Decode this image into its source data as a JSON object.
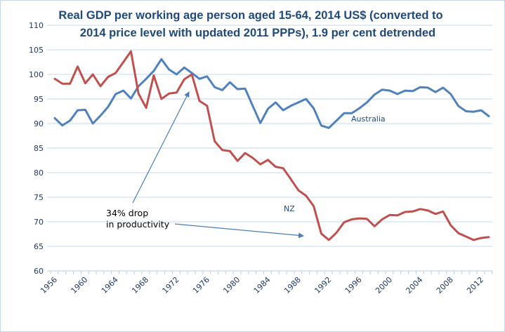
{
  "chart_data": {
    "type": "line",
    "title_lines": [
      "Real GDP per working age person aged 15-64, 2014 US$ (converted to",
      "2014 price level with updated 2011 PPPs), 1.9 per cent detrended"
    ],
    "xlabel": "",
    "ylabel": "",
    "ylim": [
      60,
      110
    ],
    "yticks": [
      60,
      65,
      70,
      75,
      80,
      85,
      90,
      95,
      100,
      105,
      110
    ],
    "x": [
      1956,
      1957,
      1958,
      1959,
      1960,
      1961,
      1962,
      1963,
      1964,
      1965,
      1966,
      1967,
      1968,
      1969,
      1970,
      1971,
      1972,
      1973,
      1974,
      1975,
      1976,
      1977,
      1978,
      1979,
      1980,
      1981,
      1982,
      1983,
      1984,
      1985,
      1986,
      1987,
      1988,
      1989,
      1990,
      1991,
      1992,
      1993,
      1994,
      1995,
      1996,
      1997,
      1998,
      1999,
      2000,
      2001,
      2002,
      2003,
      2004,
      2005,
      2006,
      2007,
      2008,
      2009,
      2010,
      2011,
      2012,
      2013
    ],
    "xticks": [
      1956,
      1960,
      1964,
      1968,
      1972,
      1976,
      1980,
      1984,
      1988,
      1992,
      1996,
      2000,
      2004,
      2008,
      2012
    ],
    "grid": true,
    "legend": "none (inline series labels)",
    "series": [
      {
        "name": "Australia",
        "color": "#4f81bd",
        "values": [
          91.1,
          89.6,
          90.6,
          92.7,
          92.8,
          90.0,
          91.6,
          93.4,
          96.0,
          96.7,
          95.1,
          97.6,
          99.1,
          100.7,
          103.1,
          101.0,
          100.0,
          101.4,
          100.3,
          99.1,
          99.6,
          97.4,
          96.8,
          98.4,
          97.0,
          97.1,
          93.6,
          90.1,
          93.0,
          94.3,
          92.7,
          93.6,
          94.3,
          95.0,
          93.1,
          89.6,
          89.1,
          90.6,
          92.1,
          92.1,
          93.1,
          94.3,
          95.9,
          96.9,
          96.7,
          96.0,
          96.7,
          96.6,
          97.4,
          97.3,
          96.4,
          97.3,
          96.0,
          93.6,
          92.5,
          92.4,
          92.7,
          91.5
        ]
      },
      {
        "name": "NZ",
        "color": "#c0504d",
        "values": [
          99.1,
          98.1,
          98.1,
          101.6,
          98.2,
          100.0,
          97.6,
          99.5,
          100.3,
          102.5,
          104.7,
          96.1,
          93.2,
          99.8,
          95.0,
          96.1,
          96.3,
          99.0,
          100.0,
          94.6,
          93.6,
          86.4,
          84.6,
          84.4,
          82.4,
          84.0,
          83.0,
          81.7,
          82.6,
          81.2,
          80.9,
          78.7,
          76.4,
          75.3,
          73.2,
          67.6,
          66.3,
          67.8,
          69.9,
          70.5,
          70.7,
          70.6,
          69.1,
          70.5,
          71.4,
          71.3,
          72.0,
          72.1,
          72.6,
          72.3,
          71.6,
          72.1,
          69.3,
          67.7,
          67.0,
          66.3,
          66.7,
          66.9
        ]
      }
    ],
    "annotations": {
      "series_label_australia": "Australia",
      "series_label_nz": "NZ",
      "drop_text_line1": "34% drop",
      "drop_text_line2": "in productivity",
      "arrow_from_year_peak": 1974,
      "arrow_to_year_trough": 1991
    }
  }
}
